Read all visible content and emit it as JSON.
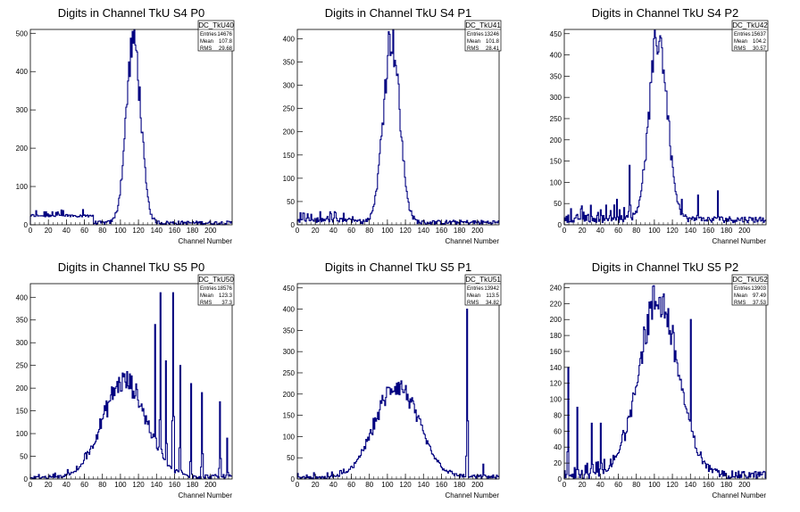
{
  "page": {
    "background": "#ffffff"
  },
  "colors": {
    "histogram": "#000080",
    "frame": "#000000"
  },
  "chart_data": [
    {
      "type": "histogram",
      "title": "Digits in Channel TkU S4 P0",
      "xlabel": "Channel Number",
      "xlim": [
        0,
        224
      ],
      "ylim": [
        0,
        510
      ],
      "xticks": [
        0,
        20,
        40,
        60,
        80,
        100,
        120,
        140,
        160,
        180,
        200
      ],
      "yticks": [
        0,
        100,
        200,
        300,
        400,
        500
      ],
      "stats": {
        "name": "DC_TkU40",
        "rows": [
          [
            "Entries",
            "14676"
          ],
          [
            "Mean",
            "107.8"
          ],
          [
            "RMS",
            "29.68"
          ]
        ]
      },
      "features": {
        "noise_lo": 20,
        "noise_hi": 40,
        "peak_x": 114,
        "peak_h": 480,
        "sigma": 8,
        "floor_lo": 0,
        "floor_hi": 10,
        "tails": []
      }
    },
    {
      "type": "histogram",
      "title": "Digits in Channel TkU S4 P1",
      "xlabel": "Channel Number",
      "xlim": [
        0,
        224
      ],
      "ylim": [
        0,
        420
      ],
      "xticks": [
        0,
        20,
        40,
        60,
        80,
        100,
        120,
        140,
        160,
        180,
        200
      ],
      "yticks": [
        0,
        50,
        100,
        150,
        200,
        250,
        300,
        350,
        400
      ],
      "stats": {
        "name": "DC_TkU41",
        "rows": [
          [
            "Entries",
            "13246"
          ],
          [
            "Mean",
            "101.8"
          ],
          [
            "RMS",
            "28.41"
          ]
        ]
      },
      "features": {
        "noise_lo": 5,
        "noise_hi": 30,
        "peak_x": 104,
        "peak_h": 400,
        "sigma": 9,
        "floor_lo": 0,
        "floor_hi": 10,
        "tails": []
      }
    },
    {
      "type": "histogram",
      "title": "Digits in Channel TkU S4 P2",
      "xlabel": "Channel Number",
      "xlim": [
        0,
        224
      ],
      "ylim": [
        0,
        460
      ],
      "xticks": [
        0,
        20,
        40,
        60,
        80,
        100,
        120,
        140,
        160,
        180,
        200
      ],
      "yticks": [
        0,
        50,
        100,
        150,
        200,
        250,
        300,
        350,
        400,
        450
      ],
      "stats": {
        "name": "DC_TkU42",
        "rows": [
          [
            "Entries",
            "15637"
          ],
          [
            "Mean",
            "104.2"
          ],
          [
            "RMS",
            "30.57"
          ]
        ]
      },
      "features": {
        "noise_lo": 5,
        "noise_hi": 50,
        "peak_x": 104,
        "peak_h": 430,
        "sigma": 10,
        "floor_lo": 5,
        "floor_hi": 20,
        "tails": [
          [
            58,
            60
          ],
          [
            72,
            140
          ],
          [
            130,
            60
          ],
          [
            148,
            70
          ],
          [
            170,
            80
          ]
        ]
      }
    },
    {
      "type": "histogram",
      "title": "Digits in Channel TkU S5 P0",
      "xlabel": "Channel Number",
      "xlim": [
        0,
        224
      ],
      "ylim": [
        0,
        430
      ],
      "xticks": [
        0,
        20,
        40,
        60,
        80,
        100,
        120,
        140,
        160,
        180,
        200
      ],
      "yticks": [
        0,
        50,
        100,
        150,
        200,
        250,
        300,
        350,
        400
      ],
      "stats": {
        "name": "DC_TkU50",
        "rows": [
          [
            "Entries",
            "18576"
          ],
          [
            "Mean",
            "123.3"
          ],
          [
            "RMS",
            "37.3"
          ]
        ]
      },
      "features": {
        "noise_lo": 0,
        "noise_hi": 15,
        "peak_x": 104,
        "peak_h": 210,
        "sigma": 24,
        "floor_lo": 0,
        "floor_hi": 10,
        "tails": [
          [
            138,
            340
          ],
          [
            144,
            410
          ],
          [
            150,
            260
          ],
          [
            158,
            410
          ],
          [
            166,
            250
          ],
          [
            178,
            210
          ],
          [
            190,
            190
          ],
          [
            210,
            170
          ],
          [
            218,
            90
          ]
        ]
      }
    },
    {
      "type": "histogram",
      "title": "Digits in Channel TkU S5 P1",
      "xlabel": "Channel Number",
      "xlim": [
        0,
        224
      ],
      "ylim": [
        0,
        460
      ],
      "xticks": [
        0,
        20,
        40,
        60,
        80,
        100,
        120,
        140,
        160,
        180,
        200
      ],
      "yticks": [
        0,
        50,
        100,
        150,
        200,
        250,
        300,
        350,
        400,
        450
      ],
      "stats": {
        "name": "DC_TkU51",
        "rows": [
          [
            "Entries",
            "13942"
          ],
          [
            "Mean",
            "113.5"
          ],
          [
            "RMS",
            "34.82"
          ]
        ]
      },
      "features": {
        "noise_lo": 0,
        "noise_hi": 15,
        "peak_x": 110,
        "peak_h": 215,
        "sigma": 24,
        "floor_lo": 0,
        "floor_hi": 10,
        "tails": [
          [
            188,
            400
          ],
          [
            206,
            35
          ]
        ]
      }
    },
    {
      "type": "histogram",
      "title": "Digits in Channel TkU S5 P2",
      "xlabel": "Channel Number",
      "xlim": [
        0,
        224
      ],
      "ylim": [
        0,
        245
      ],
      "xticks": [
        0,
        20,
        40,
        60,
        80,
        100,
        120,
        140,
        160,
        180,
        200
      ],
      "yticks": [
        0,
        20,
        40,
        60,
        80,
        100,
        120,
        140,
        160,
        180,
        200,
        220,
        240
      ],
      "stats": {
        "name": "DC_TkU52",
        "rows": [
          [
            "Entries",
            "13903"
          ],
          [
            "Mean",
            "97.49"
          ],
          [
            "RMS",
            "37.53"
          ]
        ]
      },
      "features": {
        "noise_lo": 0,
        "noise_hi": 20,
        "peak_x": 104,
        "peak_h": 220,
        "sigma": 22,
        "floor_lo": 0,
        "floor_hi": 10,
        "tails": [
          [
            4,
            140
          ],
          [
            14,
            90
          ],
          [
            30,
            70
          ],
          [
            40,
            70
          ],
          [
            140,
            200
          ]
        ]
      }
    }
  ]
}
